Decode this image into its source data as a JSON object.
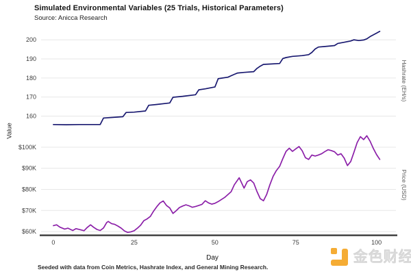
{
  "title": "Simulated Environmental Variables (25 Trials, Historical Parameters)",
  "subtitle": "Source: Anicca Research",
  "caption": "Seeded with data from Coin Metrics, Hashrate Index, and General Mining Research.",
  "watermark": {
    "text": "金色财经",
    "icon_color": "#F5A623"
  },
  "chart_data": {
    "type": "line",
    "title": "Simulated Environmental Variables (25 Trials, Historical Parameters)",
    "subtitle": "Source: Anicca Research",
    "xlabel": "Day",
    "ylabel": "Value",
    "grid": "major-horizontal",
    "legend_position": "none",
    "x_ticks": [
      0,
      25,
      50,
      75,
      100
    ],
    "xlim": [
      -3.8,
      106
    ],
    "panels": [
      {
        "id": "hashrate",
        "name": "Hashrate (EH/s)",
        "color": "#191970",
        "ylim": [
          150.5,
          206.5
        ],
        "yticks": [
          160,
          170,
          180,
          190,
          200
        ],
        "ytick_labels": [
          "160",
          "170",
          "180",
          "190",
          "200"
        ],
        "points": [
          [
            0,
            155.6
          ],
          [
            4,
            155.5
          ],
          [
            8,
            155.6
          ],
          [
            12,
            155.6
          ],
          [
            14.5,
            155.6
          ],
          [
            15.5,
            159.0
          ],
          [
            18,
            159.3
          ],
          [
            21.5,
            159.7
          ],
          [
            22.5,
            161.9
          ],
          [
            25,
            162.1
          ],
          [
            28.5,
            162.7
          ],
          [
            29.5,
            165.7
          ],
          [
            32,
            166.1
          ],
          [
            36,
            166.9
          ],
          [
            37,
            169.9
          ],
          [
            40,
            170.4
          ],
          [
            44,
            171.2
          ],
          [
            45,
            173.8
          ],
          [
            47,
            174.3
          ],
          [
            50,
            175.3
          ],
          [
            51,
            179.6
          ],
          [
            52,
            179.9
          ],
          [
            54,
            180.4
          ],
          [
            56,
            181.9
          ],
          [
            57,
            182.6
          ],
          [
            59,
            182.9
          ],
          [
            62,
            183.3
          ],
          [
            63,
            185.0
          ],
          [
            64,
            186.2
          ],
          [
            65,
            187.1
          ],
          [
            67,
            187.3
          ],
          [
            70,
            187.6
          ],
          [
            71,
            190.2
          ],
          [
            72,
            190.7
          ],
          [
            74,
            191.3
          ],
          [
            77,
            191.7
          ],
          [
            79,
            192.2
          ],
          [
            80,
            193.4
          ],
          [
            81,
            195.2
          ],
          [
            82,
            196.2
          ],
          [
            84,
            196.5
          ],
          [
            86,
            196.8
          ],
          [
            87,
            197.0
          ],
          [
            88,
            198.1
          ],
          [
            90,
            198.7
          ],
          [
            92,
            199.4
          ],
          [
            93,
            200.0
          ],
          [
            94.5,
            199.6
          ],
          [
            96,
            199.9
          ],
          [
            97,
            200.5
          ],
          [
            98,
            201.7
          ],
          [
            99,
            202.6
          ],
          [
            100,
            203.5
          ],
          [
            101,
            204.4
          ]
        ]
      },
      {
        "id": "price",
        "name": "Price (USD)",
        "color": "#8B1FA8",
        "ylim": [
          58.4,
          105.8
        ],
        "yticks": [
          60,
          70,
          80,
          90,
          100
        ],
        "ytick_labels": [
          "$60K",
          "$70K",
          "$80K",
          "$90K",
          "$100K"
        ],
        "points": [
          [
            0,
            62.8
          ],
          [
            1,
            63.2
          ],
          [
            2,
            62.1
          ],
          [
            3.5,
            61.2
          ],
          [
            4.5,
            61.6
          ],
          [
            6,
            60.5
          ],
          [
            7,
            61.4
          ],
          [
            8.5,
            60.8
          ],
          [
            9.5,
            60.4
          ],
          [
            10.5,
            62.0
          ],
          [
            11.5,
            63.2
          ],
          [
            12.5,
            62.0
          ],
          [
            13.5,
            61.0
          ],
          [
            14.5,
            60.5
          ],
          [
            15.5,
            61.7
          ],
          [
            16.5,
            64.3
          ],
          [
            17,
            64.8
          ],
          [
            18,
            63.8
          ],
          [
            19,
            63.4
          ],
          [
            20,
            62.6
          ],
          [
            21,
            61.6
          ],
          [
            22,
            60.3
          ],
          [
            23,
            59.6
          ],
          [
            24,
            59.9
          ],
          [
            25,
            60.4
          ],
          [
            26,
            61.6
          ],
          [
            27,
            63.0
          ],
          [
            28,
            65.2
          ],
          [
            29,
            66.0
          ],
          [
            30,
            67.2
          ],
          [
            31,
            69.7
          ],
          [
            32,
            71.8
          ],
          [
            33,
            73.6
          ],
          [
            34,
            74.5
          ],
          [
            35,
            72.4
          ],
          [
            36,
            71.2
          ],
          [
            37,
            68.6
          ],
          [
            38,
            69.9
          ],
          [
            39,
            71.4
          ],
          [
            40,
            72.1
          ],
          [
            41,
            72.7
          ],
          [
            42,
            72.2
          ],
          [
            43,
            71.5
          ],
          [
            44,
            71.9
          ],
          [
            45,
            72.4
          ],
          [
            46,
            72.9
          ],
          [
            47,
            74.6
          ],
          [
            48,
            73.6
          ],
          [
            49,
            73.0
          ],
          [
            50,
            73.4
          ],
          [
            51,
            74.2
          ],
          [
            53,
            76.2
          ],
          [
            55,
            78.9
          ],
          [
            56,
            82.2
          ],
          [
            57.5,
            85.5
          ],
          [
            59,
            80.6
          ],
          [
            60,
            83.7
          ],
          [
            61,
            84.5
          ],
          [
            62,
            83.0
          ],
          [
            63,
            79.0
          ],
          [
            64,
            75.6
          ],
          [
            65,
            74.6
          ],
          [
            66,
            77.6
          ],
          [
            67,
            82.2
          ],
          [
            68,
            86.2
          ],
          [
            69,
            88.9
          ],
          [
            70,
            90.9
          ],
          [
            71,
            94.6
          ],
          [
            72,
            98.0
          ],
          [
            73,
            99.5
          ],
          [
            74,
            98.0
          ],
          [
            75,
            99.2
          ],
          [
            76,
            100.3
          ],
          [
            77,
            98.3
          ],
          [
            78,
            95.0
          ],
          [
            79,
            94.2
          ],
          [
            80,
            96.3
          ],
          [
            81,
            95.8
          ],
          [
            82,
            96.3
          ],
          [
            83,
            96.9
          ],
          [
            84,
            97.9
          ],
          [
            85,
            98.8
          ],
          [
            86,
            98.4
          ],
          [
            87,
            97.8
          ],
          [
            88,
            96.3
          ],
          [
            89,
            96.9
          ],
          [
            90,
            94.8
          ],
          [
            91,
            91.3
          ],
          [
            92,
            93.2
          ],
          [
            93,
            97.6
          ],
          [
            94,
            102.2
          ],
          [
            95,
            105.0
          ],
          [
            96,
            103.6
          ],
          [
            97,
            105.4
          ],
          [
            98,
            102.8
          ],
          [
            99,
            99.4
          ],
          [
            100,
            96.5
          ],
          [
            101,
            94.2
          ]
        ]
      }
    ]
  }
}
